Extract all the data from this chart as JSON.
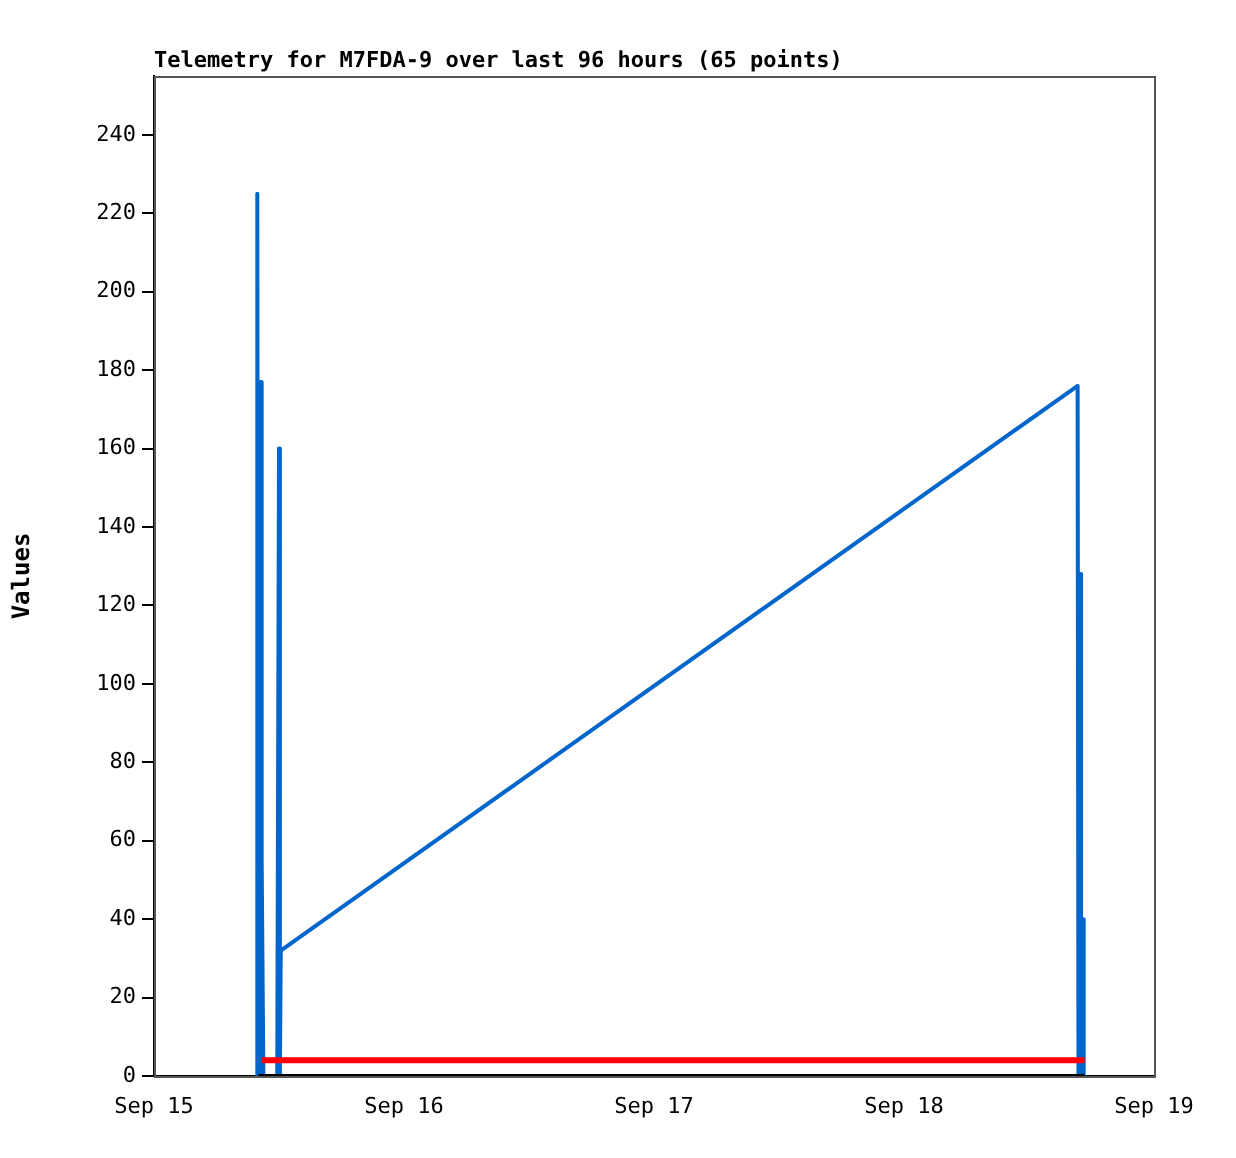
{
  "chart_data": {
    "type": "line",
    "title": "Telemetry for M7FDA-9 over last 96 hours (65 points)",
    "ylabel": "Values",
    "marker": "none",
    "grid": false,
    "legend": false,
    "xlim": [
      "--09-15",
      "--09-19"
    ],
    "xticks": [
      {
        "value": "--09-15",
        "label": "Sep 15"
      },
      {
        "value": "--09-16",
        "label": "Sep 16"
      },
      {
        "value": "--09-17",
        "label": "Sep 17"
      },
      {
        "value": "--09-18",
        "label": "Sep 18"
      },
      {
        "value": "--09-19",
        "label": "Sep 19"
      }
    ],
    "ylim": [
      0,
      255
    ],
    "yticks": [
      0,
      20,
      40,
      60,
      80,
      100,
      120,
      140,
      160,
      180,
      200,
      220,
      240
    ],
    "series": [
      {
        "color": "#000000",
        "x": [
          "--09-15T10:00",
          "--09-18T17:20"
        ],
        "values": [
          0,
          0
        ]
      },
      {
        "color": "#ff0000",
        "x": [
          "--09-15T10:20",
          "--09-18T17:20"
        ],
        "values": [
          4,
          4
        ]
      },
      {
        "color": "#0066cc",
        "x": [
          "--09-15T09:50",
          "--09-15T09:55",
          "--09-15T10:00",
          "--09-15T10:05",
          "--09-15T10:10",
          "--09-15T10:15",
          "--09-15T10:20",
          "--09-15T10:30",
          "--09-15T11:50",
          "--09-15T12:00",
          "--09-15T12:05",
          "--09-15T12:10",
          "--09-18T16:40",
          "--09-18T16:45",
          "--09-18T16:55",
          "--09-18T17:00",
          "--09-18T17:10",
          "--09-18T17:15",
          "--09-18T17:20"
        ],
        "values": [
          0,
          225,
          0,
          177,
          0,
          177,
          56,
          0,
          0,
          160,
          0,
          32,
          176,
          0,
          128,
          0,
          40,
          0,
          0
        ]
      }
    ]
  }
}
